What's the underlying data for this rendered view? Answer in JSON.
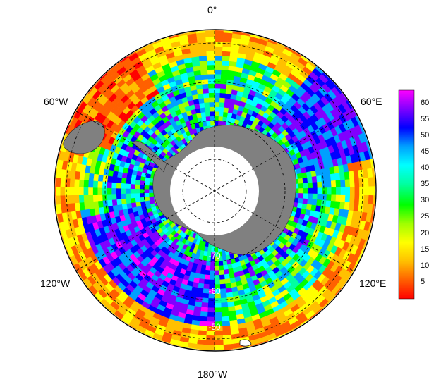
{
  "map": {
    "projection": "south-polar-stereographic",
    "longitude_labels": {
      "top": "0°",
      "upper_left": "60°W",
      "upper_right": "60°E",
      "lower_left": "120°W",
      "lower_right": "120°E",
      "bottom": "180°W"
    },
    "latitude_labels": [
      "-70",
      "-60",
      "-50"
    ],
    "land_color": "#808080",
    "ocean_mask_color": "#ffffff",
    "graticule_style": "dashed"
  },
  "colorbar": {
    "ticks": [
      "60",
      "55",
      "50",
      "45",
      "40",
      "35",
      "30",
      "25",
      "20",
      "15",
      "10",
      "5"
    ],
    "min": 0,
    "max": 64,
    "colors": [
      "#ff0000",
      "#ff6000",
      "#ffc000",
      "#ffff00",
      "#a0ff00",
      "#00ff00",
      "#00ffa0",
      "#00ffff",
      "#00a0ff",
      "#0000ff",
      "#8000ff",
      "#ff00ff"
    ]
  }
}
